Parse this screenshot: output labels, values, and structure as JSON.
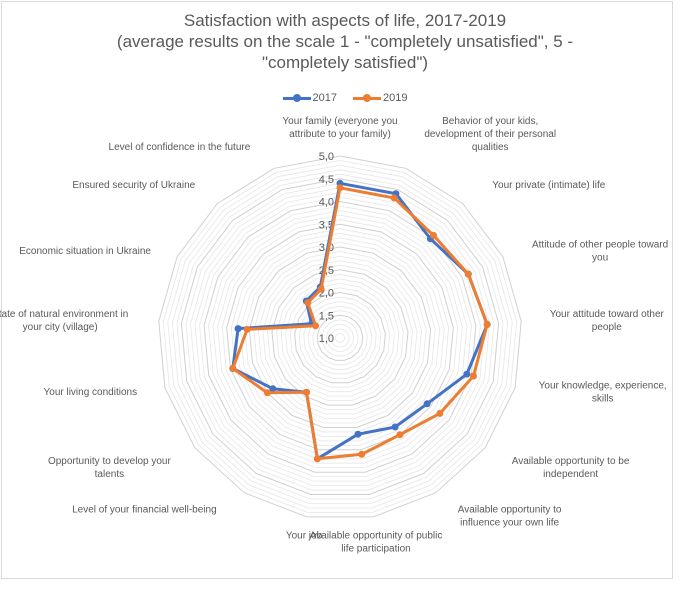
{
  "chart_data": {
    "type": "radar",
    "title_lines": [
      "Satisfaction with aspects of life, 2017-2019",
      "(average results on the scale 1 - \"completely unsatisfied\", 5 -",
      "\"completely satisfied\")"
    ],
    "legend_position": "top",
    "rmin": 1.0,
    "rmax": 5.0,
    "major_unit": 0.5,
    "tick_labels": [
      "1,0",
      "1,5",
      "2,0",
      "2,5",
      "3,0",
      "3,5",
      "4,0",
      "4,5",
      "5,0"
    ],
    "gridlines": true,
    "categories": [
      "Your family (everyone you attribute to your family)",
      "Behavior of your kids, development of their personal qualities",
      "Your private (intimate) life",
      "Attitude of other people toward you",
      "Your attitude toward other people",
      "Your knowledge, experience, skills",
      "Available opportunity to be independent",
      "Available opportunity to influence your own life",
      "Available opportunity of public life participation",
      "Your job",
      "Level of your financial well-being",
      "Opportunity to develop your talents",
      "Your living conditions",
      "State of natural environment in your city (village)",
      "Economic situation in Ukraine",
      "Ensured security of Ukraine",
      "Level of confidence in the future"
    ],
    "category_label_lines": [
      [
        "Your family (everyone you",
        "attribute to your family)"
      ],
      [
        "Behavior of your kids,",
        "development of their personal",
        "qualities"
      ],
      [
        "Your private (intimate) life"
      ],
      [
        "Attitude of other people toward",
        "you"
      ],
      [
        "Your attitude toward other",
        "people"
      ],
      [
        "Your knowledge, experience,",
        "skills"
      ],
      [
        "Available opportunity to be",
        "independent"
      ],
      [
        "Available opportunity to",
        "influence your own life"
      ],
      [
        "Available opportunity of public",
        "life participation"
      ],
      [
        "Your job"
      ],
      [
        "Level of your financial well-being"
      ],
      [
        "Opportunity to develop your",
        "talents"
      ],
      [
        "Your living conditions"
      ],
      [
        "State of natural environment in",
        "your city (village)"
      ],
      [
        "Economic situation in Ukraine"
      ],
      [
        "Ensured security of Ukraine"
      ],
      [
        "Level of confidence in the future"
      ]
    ],
    "series": [
      {
        "name": "2017",
        "color": "#4472c4",
        "values": [
          4.4,
          4.4,
          3.95,
          4.15,
          4.25,
          3.9,
          3.4,
          3.3,
          3.15,
          3.7,
          2.4,
          2.85,
          3.45,
          3.25,
          1.7,
          2.1,
          2.2
        ]
      },
      {
        "name": "2019",
        "color": "#ed7d31",
        "values": [
          4.3,
          4.3,
          4.05,
          4.15,
          4.25,
          4.05,
          3.75,
          3.5,
          3.6,
          3.7,
          2.4,
          3.0,
          3.45,
          3.05,
          1.6,
          2.05,
          2.15
        ]
      }
    ]
  }
}
